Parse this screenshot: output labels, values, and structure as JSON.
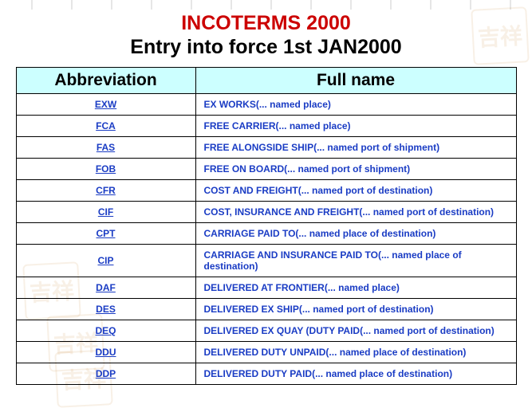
{
  "title_main": "INCOTERMS 2000",
  "title_sub": "Entry into force 1st JAN2000",
  "title_main_color": "#cc0000",
  "title_sub_color": "#000000",
  "header_bg": "#ccffff",
  "link_color": "#1a3cc4",
  "border_color": "#000000",
  "columns": {
    "abbr": "Abbreviation",
    "full": "Full name"
  },
  "col_widths": {
    "abbr": 225,
    "full": 403
  },
  "font_sizes": {
    "header": 21,
    "body": 12,
    "title": 25
  },
  "rows": [
    {
      "abbr": "EXW",
      "full": "EX WORKS(... named place)"
    },
    {
      "abbr": "FCA",
      "full": "FREE CARRIER(... named place)"
    },
    {
      "abbr": "FAS",
      "full": "FREE ALONGSIDE SHIP(... named port of shipment)"
    },
    {
      "abbr": "FOB",
      "full": "FREE ON BOARD(... named port of shipment)"
    },
    {
      "abbr": "CFR",
      "full": "COST AND FREIGHT(... named port of destination)"
    },
    {
      "abbr": "CIF",
      "full": "COST, INSURANCE AND FREIGHT(... named port of destination)"
    },
    {
      "abbr": "CPT",
      "full": "CARRIAGE PAID TO(... named place of destination)"
    },
    {
      "abbr": "CIP",
      "full": "CARRIAGE AND INSURANCE  PAID TO(... named place of destination)"
    },
    {
      "abbr": "DAF",
      "full": "DELIVERED AT FRONTIER(... named place)"
    },
    {
      "abbr": "DES",
      "full": "DELIVERED EX SHIP(... named port of destination)"
    },
    {
      "abbr": "DEQ",
      "full": "DELIVERED EX QUAY (DUTY PAID(... named port of destination)"
    },
    {
      "abbr": "DDU",
      "full": "DELIVERED DUTY UNPAID(... named place of destination)"
    },
    {
      "abbr": "DDP",
      "full": "DELIVERED DUTY PAID(... named place of destination)"
    }
  ],
  "watermark_glyph": "吉祥",
  "watermark_color": "#d4a060"
}
